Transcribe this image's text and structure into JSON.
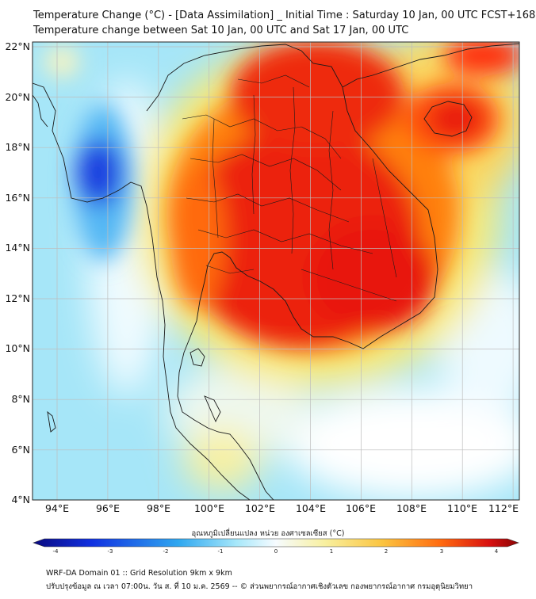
{
  "title_line1": "Temperature Change (°C) - [Data Assimilation] _ Initial Time : Saturday 10 Jan, 00 UTC FCST+168",
  "title_line2": "Temperature change between Sat 10 Jan, 00 UTC and Sat 17 Jan, 00 UTC",
  "lat_labels": [
    "22°N",
    "20°N",
    "18°N",
    "16°N",
    "14°N",
    "12°N",
    "10°N",
    "8°N",
    "6°N",
    "4°N"
  ],
  "lon_labels": [
    "94°E",
    "96°E",
    "98°E",
    "100°E",
    "102°E",
    "104°E",
    "106°E",
    "108°E",
    "110°E",
    "112°E"
  ],
  "colorbar": {
    "title": "อุณหภูมิเปลี่ยนแปลง หน่วย องศาเซลเซียส (°C)",
    "ticks": [
      "-4",
      "-3",
      "-2",
      "-1",
      "0",
      "1",
      "2",
      "3",
      "4"
    ],
    "min": -4,
    "max": 4
  },
  "footer_line1": "WRF-DA Domain 01 :: Grid Resolution 9km x 9km",
  "footer_line2": "ปรับปรุงข้อมูล ณ เวลา 07:00น. วัน ส. ที่ 10 ม.ค. 2569 -- © ส่วนพยากรณ์อากาศเชิงตัวเลข กองพยากรณ์อากาศ กรมอุตุนิยมวิทยา",
  "colors": {
    "strong_cold": "#1030e0",
    "cold": "#7fd8f8",
    "neutral": "#f6fbff",
    "warm": "#f8ee80",
    "hot": "#ff7a10",
    "very_hot": "#e81010"
  }
}
